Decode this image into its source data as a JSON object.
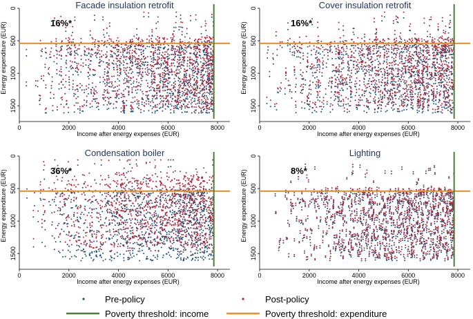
{
  "colors": {
    "pre_policy": "#1f4e79",
    "post_policy": "#b22234",
    "income_line": "#4b7f35",
    "expenditure_line": "#e8902a",
    "title": "#1f3864"
  },
  "legend": {
    "pre_policy": "Pre-policy",
    "post_policy": "Post-policy",
    "income_threshold": "Poverty threshold: income",
    "expenditure_threshold": "Poverty threshold: expenditure"
  },
  "chart_data": [
    {
      "type": "scatter",
      "title": "Facade insulation retrofit",
      "annotation": "16%*",
      "xlabel": "Income after energy expenses (EUR)",
      "ylabel": "Energy expenditure (EUR)",
      "xlim": [
        0,
        8500
      ],
      "xticks": [
        0,
        2000,
        4000,
        6000,
        8000
      ],
      "ylim": [
        0,
        1700
      ],
      "y_reversed": true,
      "yticks": [
        0,
        500,
        1000,
        1500
      ],
      "income_threshold": 7850,
      "expenditure_threshold": 540,
      "shift": 70,
      "n_points": 1100,
      "seed": 11
    },
    {
      "type": "scatter",
      "title": "Cover insulation retrofit",
      "annotation": "16%*",
      "xlabel": "Income after energy expenses (EUR)",
      "ylabel": "Energy expenditure (EUR)",
      "xlim": [
        0,
        8500
      ],
      "xticks": [
        0,
        2000,
        4000,
        6000,
        8000
      ],
      "ylim": [
        0,
        1700
      ],
      "y_reversed": true,
      "yticks": [
        0,
        500,
        1000,
        1500
      ],
      "income_threshold": 7850,
      "expenditure_threshold": 540,
      "shift": 70,
      "n_points": 1100,
      "seed": 23
    },
    {
      "type": "scatter",
      "title": "Condensation boiler",
      "annotation": "36%*",
      "xlabel": "Income after energy expenses (EUR)",
      "ylabel": "Energy expenditure (EUR)",
      "xlim": [
        0,
        8500
      ],
      "xticks": [
        0,
        2000,
        4000,
        6000,
        8000
      ],
      "ylim": [
        0,
        1700
      ],
      "y_reversed": true,
      "yticks": [
        0,
        500,
        1000,
        1500
      ],
      "income_threshold": 7850,
      "expenditure_threshold": 540,
      "shift": 200,
      "n_points": 1100,
      "seed": 37
    },
    {
      "type": "scatter",
      "title": "Lighting",
      "annotation": "8%*",
      "xlabel": "Income after energy expenses (EUR)",
      "ylabel": "Energy expenditure (EUR)",
      "xlim": [
        0,
        8500
      ],
      "xticks": [
        0,
        2000,
        4000,
        6000,
        8000
      ],
      "ylim": [
        0,
        1700
      ],
      "y_reversed": true,
      "yticks": [
        0,
        500,
        1000,
        1500
      ],
      "income_threshold": 7850,
      "expenditure_threshold": 540,
      "shift": 30,
      "n_points": 1100,
      "seed": 53
    }
  ]
}
